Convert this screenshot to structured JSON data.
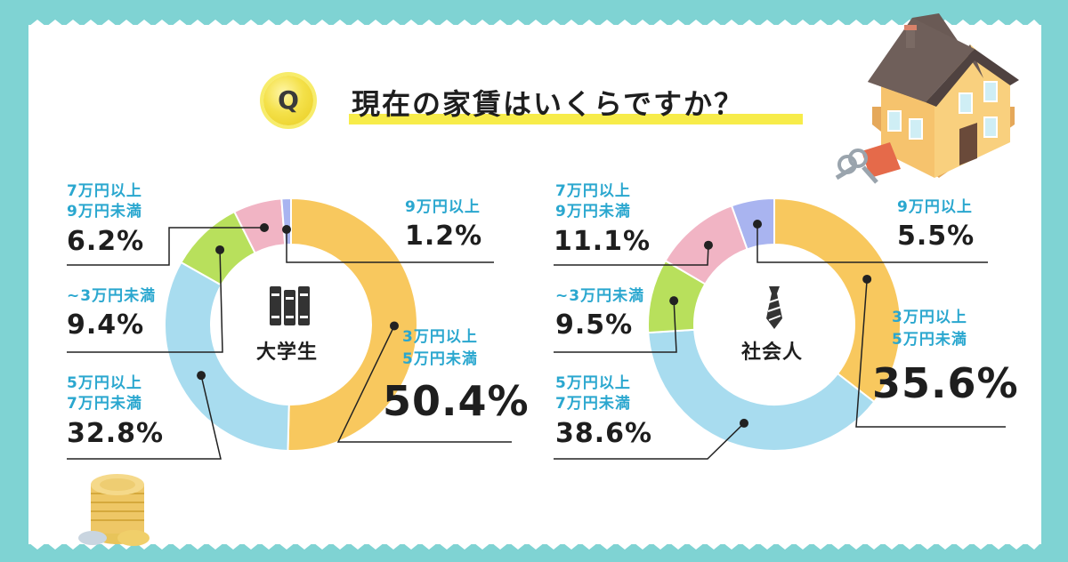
{
  "question": {
    "badge": "Q",
    "title": "現在の家賃はいくらですか？"
  },
  "colors": {
    "background": "#7fd3d3",
    "orange": "#f8c85e",
    "blue": "#a8dcef",
    "green": "#b8e05c",
    "pink": "#f1b4c4",
    "purple": "#a9b4f0",
    "label_blue": "#2aa7cf",
    "highlight": "#f7ec4a"
  },
  "chart_data": [
    {
      "type": "pie",
      "donut": true,
      "center_label": "大学生",
      "center_icon": "books-icon",
      "segments": [
        {
          "label": "3万円以上\n5万円未満",
          "label_lines": [
            "3万円以上",
            "5万円未満"
          ],
          "value": 50.4,
          "value_text": "50.4%",
          "color": "#f8c85e"
        },
        {
          "label": "5万円以上\n7万円未満",
          "label_lines": [
            "5万円以上",
            "7万円未満"
          ],
          "value": 32.8,
          "value_text": "32.8%",
          "color": "#a8dcef"
        },
        {
          "label": "~3万円未満",
          "label_lines": [
            "~3万円未満"
          ],
          "value": 9.4,
          "value_text": "9.4%",
          "color": "#b8e05c"
        },
        {
          "label": "7万円以上\n9万円未満",
          "label_lines": [
            "7万円以上",
            "9万円未満"
          ],
          "value": 6.2,
          "value_text": "6.2%",
          "color": "#f1b4c4"
        },
        {
          "label": "9万円以上",
          "label_lines": [
            "9万円以上"
          ],
          "value": 1.2,
          "value_text": "1.2%",
          "color": "#a9b4f0"
        }
      ]
    },
    {
      "type": "pie",
      "donut": true,
      "center_label": "社会人",
      "center_icon": "necktie-icon",
      "segments": [
        {
          "label": "3万円以上\n5万円未満",
          "label_lines": [
            "3万円以上",
            "5万円未満"
          ],
          "value": 35.6,
          "value_text": "35.6%",
          "color": "#f8c85e"
        },
        {
          "label": "5万円以上\n7万円未満",
          "label_lines": [
            "5万円以上",
            "7万円未満"
          ],
          "value": 38.6,
          "value_text": "38.6%",
          "color": "#a8dcef"
        },
        {
          "label": "~3万円未満",
          "label_lines": [
            "~3万円未満"
          ],
          "value": 9.5,
          "value_text": "9.5%",
          "color": "#b8e05c"
        },
        {
          "label": "7万円以上\n9万円未満",
          "label_lines": [
            "7万円以上",
            "9万円未満"
          ],
          "value": 11.1,
          "value_text": "11.1%",
          "color": "#f1b4c4"
        },
        {
          "label": "9万円以上",
          "label_lines": [
            "9万円以上"
          ],
          "value": 5.5,
          "value_text": "5.5%",
          "color": "#a9b4f0"
        }
      ]
    }
  ]
}
